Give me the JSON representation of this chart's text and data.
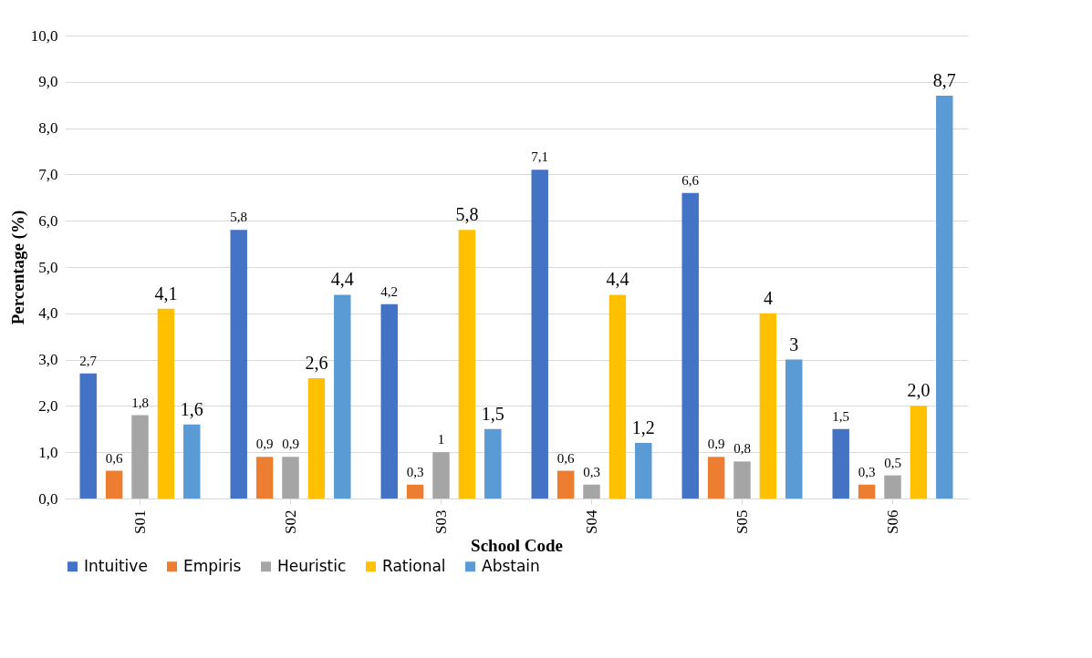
{
  "chart_data": {
    "type": "bar",
    "xlabel": "School Code",
    "ylabel": "Percentage (%)",
    "categories": [
      "S01",
      "S02",
      "S03",
      "S04",
      "S05",
      "S06"
    ],
    "series": [
      {
        "name": "Intuitive",
        "color": "#4472c4",
        "values": [
          2.7,
          5.8,
          4.2,
          7.1,
          6.6,
          1.5
        ],
        "value_labels": [
          "2,7",
          "5,8",
          "4,2",
          "7,1",
          "6,6",
          "1,5"
        ]
      },
      {
        "name": "Empiris",
        "color": "#ed7d31",
        "values": [
          0.6,
          0.9,
          0.3,
          0.6,
          0.9,
          0.3
        ],
        "value_labels": [
          "0,6",
          "0,9",
          "0,3",
          "0,6",
          "0,9",
          "0,3"
        ]
      },
      {
        "name": "Heuristic",
        "color": "#a5a5a5",
        "values": [
          1.8,
          0.9,
          1,
          0.3,
          0.8,
          0.5
        ],
        "value_labels": [
          "1,8",
          "0,9",
          "1",
          "0,3",
          "0,8",
          "0,5"
        ]
      },
      {
        "name": "Rational",
        "color": "#ffc000",
        "values": [
          4.1,
          2.6,
          5.8,
          4.4,
          4,
          2.0
        ],
        "value_labels": [
          "4,1",
          "2,6",
          "5,8",
          "4,4",
          "4",
          "2,0"
        ]
      },
      {
        "name": "Abstain",
        "color": "#5b9bd5",
        "values": [
          1.6,
          4.4,
          1.5,
          1.2,
          3,
          8.7
        ],
        "value_labels": [
          "1,6",
          "4,4",
          "1,5",
          "1,2",
          "3",
          "8,7"
        ]
      }
    ],
    "ylim": [
      0,
      10
    ],
    "yticks": [
      {
        "value": 0,
        "label": "0,0"
      },
      {
        "value": 1,
        "label": "1,0"
      },
      {
        "value": 2,
        "label": "2,0"
      },
      {
        "value": 3,
        "label": "3,0"
      },
      {
        "value": 4,
        "label": "4,0"
      },
      {
        "value": 5,
        "label": "5,0"
      },
      {
        "value": 6,
        "label": "6,0"
      },
      {
        "value": 7,
        "label": "7,0"
      },
      {
        "value": 8,
        "label": "8,0"
      },
      {
        "value": 9,
        "label": "9,0"
      },
      {
        "value": 10,
        "label": "10,0"
      }
    ],
    "grid": "y",
    "legend": "bottom"
  }
}
